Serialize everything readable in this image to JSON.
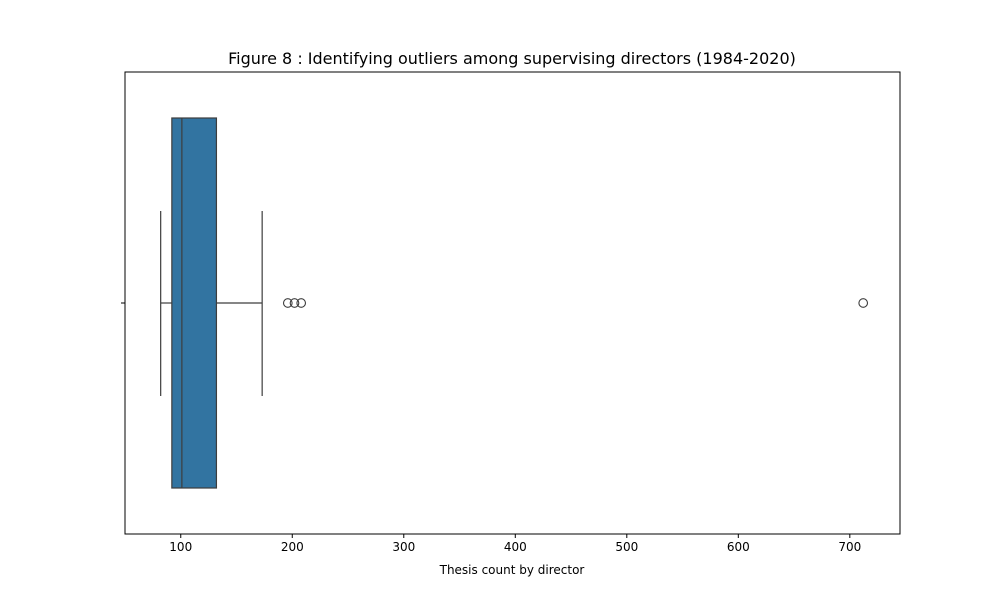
{
  "chart_data": {
    "type": "box",
    "orientation": "horizontal",
    "title": "Figure 8 : Identifying outliers among supervising directors (1984-2020)",
    "xlabel": "Thesis count by director",
    "ylabel": "",
    "xlim": [
      50,
      745
    ],
    "x_ticks": [
      100,
      200,
      300,
      400,
      500,
      600,
      700
    ],
    "grid": false,
    "box": {
      "whisker_low": 82,
      "q1": 92,
      "median": 101,
      "q3": 132,
      "whisker_high": 173,
      "fill_color": "#3274a1",
      "edge_color": "#3d3d3d"
    },
    "outliers": [
      196,
      202,
      208,
      712
    ]
  }
}
